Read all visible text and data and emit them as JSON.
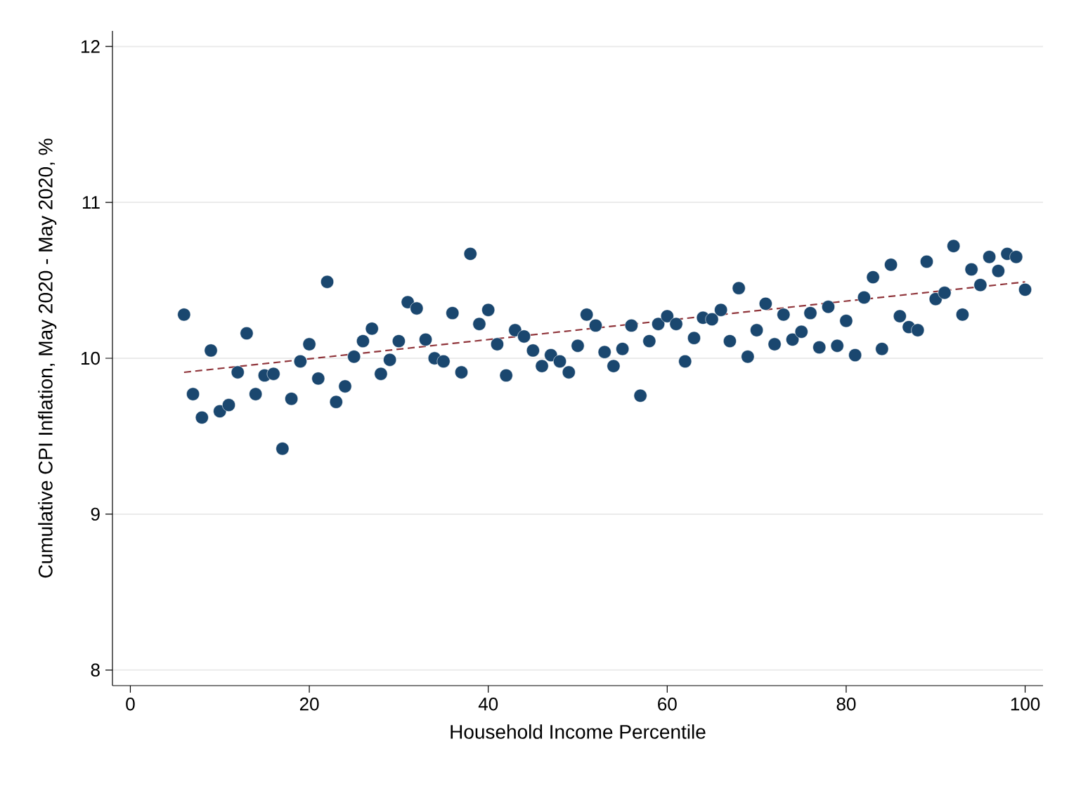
{
  "chart_data": {
    "type": "scatter",
    "xlabel": "Household Income Percentile",
    "ylabel": "Cumulative CPI Inflation, May 2020 - May 2020, %",
    "xlim": [
      -2,
      102
    ],
    "ylim": [
      7.9,
      12.1
    ],
    "xticks": [
      0,
      20,
      40,
      60,
      80,
      100
    ],
    "yticks": [
      8,
      9,
      10,
      11,
      12
    ],
    "grid": "y",
    "marker": "circle",
    "series": [
      {
        "color": "#1a476f",
        "x": [
          6,
          7,
          8,
          9,
          10,
          11,
          12,
          13,
          14,
          15,
          16,
          17,
          18,
          19,
          20,
          21,
          22,
          23,
          24,
          25,
          26,
          27,
          28,
          29,
          30,
          31,
          32,
          33,
          34,
          35,
          36,
          37,
          38,
          39,
          40,
          41,
          42,
          43,
          44,
          45,
          46,
          47,
          48,
          49,
          50,
          51,
          52,
          53,
          54,
          55,
          56,
          57,
          58,
          59,
          60,
          61,
          62,
          63,
          64,
          65,
          66,
          67,
          68,
          69,
          70,
          71,
          72,
          73,
          74,
          75,
          76,
          77,
          78,
          79,
          80,
          81,
          82,
          83,
          84,
          85,
          86,
          87,
          88,
          89,
          90,
          91,
          92,
          93,
          94,
          95,
          96,
          97,
          98,
          99,
          100
        ],
        "values": [
          10.28,
          9.77,
          9.62,
          10.05,
          9.66,
          9.7,
          9.91,
          10.16,
          9.77,
          9.89,
          9.9,
          9.42,
          9.74,
          9.98,
          10.09,
          9.87,
          10.49,
          9.72,
          9.82,
          10.01,
          10.11,
          10.19,
          9.9,
          9.99,
          10.11,
          10.36,
          10.32,
          10.12,
          10.0,
          9.98,
          10.29,
          9.91,
          10.67,
          10.22,
          10.31,
          10.09,
          9.89,
          10.18,
          10.14,
          10.05,
          9.95,
          10.02,
          9.98,
          9.91,
          10.08,
          10.28,
          10.21,
          10.04,
          9.95,
          10.06,
          10.21,
          9.76,
          10.11,
          10.22,
          10.27,
          10.22,
          9.98,
          10.13,
          10.26,
          10.25,
          10.31,
          10.11,
          10.45,
          10.01,
          10.18,
          10.35,
          10.09,
          10.28,
          10.12,
          10.17,
          10.29,
          10.07,
          10.33,
          10.08,
          10.24,
          10.02,
          10.39,
          10.52,
          10.06,
          10.6,
          10.27,
          10.2,
          10.18,
          10.62,
          10.38,
          10.42,
          10.72,
          10.28,
          10.57,
          10.47,
          10.65,
          10.56,
          10.67,
          10.65,
          10.44
        ]
      },
      {
        "type": "line",
        "color": "#90353b",
        "line_style": "dashed",
        "marker": "none",
        "x": [
          6,
          100
        ],
        "values": [
          9.91,
          10.49
        ]
      }
    ]
  }
}
